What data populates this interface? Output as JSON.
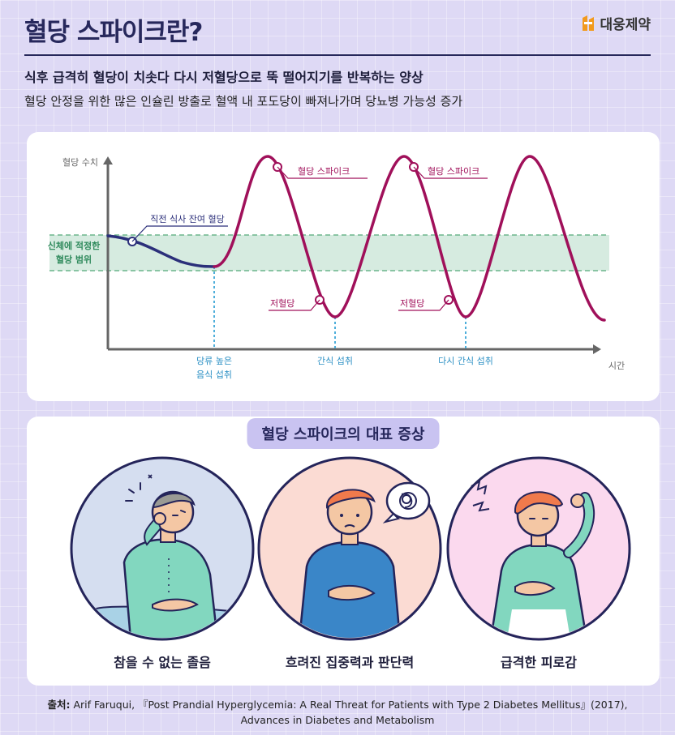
{
  "header": {
    "title": "혈당 스파이크란?",
    "brand": "대웅제약",
    "subtitle_bold": "식후 급격히 혈당이 치솟다 다시 저혈당으로 뚝 떨어지기를 반복하는 양상",
    "subtitle": "혈당 안정을 위한 많은 인슐린 방출로 혈액 내 포도당이 빠져나가며 당뇨병 가능성 증가"
  },
  "chart": {
    "y_axis_label": "혈당 수치",
    "x_axis_label": "시간",
    "range_label_line1": "신체에 적정한",
    "range_label_line2": "혈당 범위",
    "annotations": {
      "pre_meal": "직전 식사 잔여 혈당",
      "spike_1": "혈당 스파이크",
      "spike_2": "혈당 스파이크",
      "low_1": "저혈당",
      "low_2": "저혈당"
    },
    "events": {
      "meal_line1": "당류 높은",
      "meal_line2": "음식 섭취",
      "snack": "간식 섭취",
      "snack_again": "다시 간식 섭취"
    },
    "colors": {
      "pre": "#2b2f7a",
      "spike": "#a0105a",
      "range": "#d6ebe0",
      "range_border": "#6bb58c",
      "axis": "#666666",
      "event": "#3aa6d6"
    }
  },
  "symptoms": {
    "heading": "혈당 스파이크의 대표 증상",
    "items": [
      {
        "label": "참을 수 없는 졸음",
        "bg": "#d5def0",
        "icon": "drowsy-person-icon"
      },
      {
        "label": "흐려진 집중력과 판단력",
        "bg": "#fbdbd3",
        "icon": "confused-person-icon"
      },
      {
        "label": "급격한 피로감",
        "bg": "#fbd9ee",
        "icon": "fatigued-person-icon"
      }
    ]
  },
  "source": {
    "label": "출처:",
    "line1": "Arif Faruqui, 『Post Prandial Hyperglycemia: A Real Threat for Patients with Type 2 Diabetes Mellitus』(2017),",
    "line2": "Advances in Diabetes and Metabolism"
  }
}
